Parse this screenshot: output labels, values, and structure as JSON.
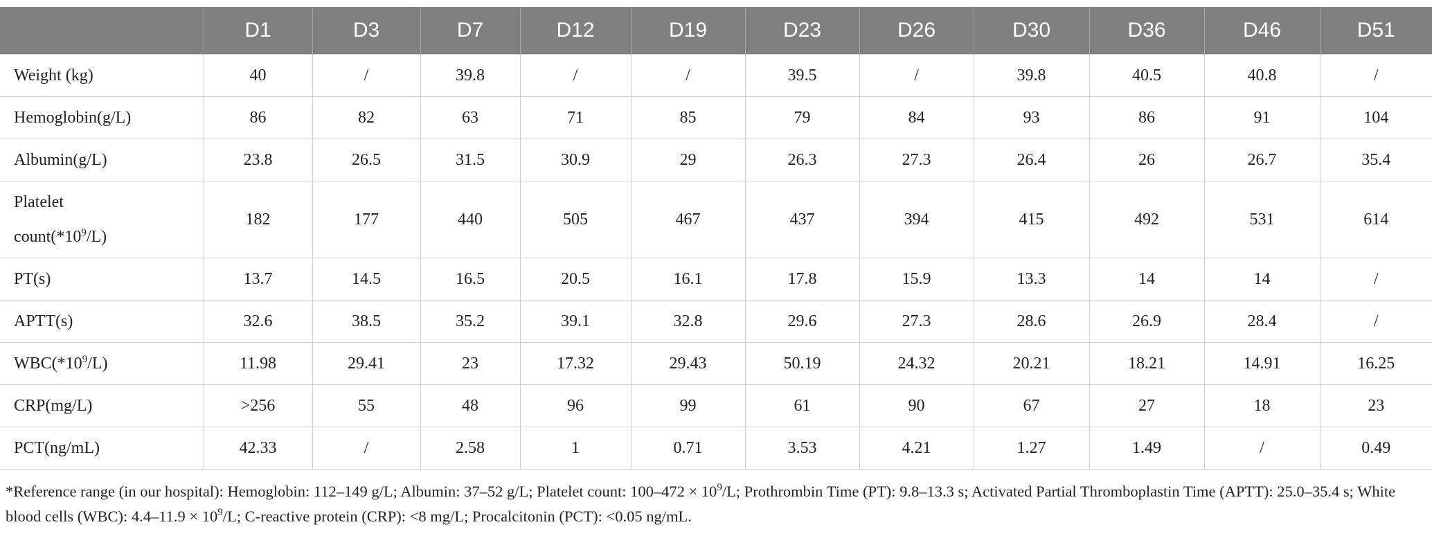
{
  "table": {
    "header": [
      "D1",
      "D3",
      "D7",
      "D12",
      "D19",
      "D23",
      "D26",
      "D30",
      "D36",
      "D46",
      "D51"
    ],
    "rows": [
      {
        "label": [
          {
            "text": "Weight (kg)"
          }
        ],
        "cells": [
          40,
          "/",
          39.8,
          "/",
          "/",
          39.5,
          "/",
          39.8,
          40.5,
          40.8,
          "/"
        ]
      },
      {
        "label": [
          {
            "text": "Hemoglobin(g/L)"
          }
        ],
        "cells": [
          86,
          82,
          63,
          71,
          85,
          79,
          84,
          93,
          86,
          91,
          104
        ]
      },
      {
        "label": [
          {
            "text": "Albumin(g/L)"
          }
        ],
        "cells": [
          23.8,
          26.5,
          31.5,
          30.9,
          29,
          26.3,
          27.3,
          26.4,
          26,
          26.7,
          35.4
        ]
      },
      {
        "label": [
          {
            "text": "Platelet"
          },
          {
            "text": "count(*10"
          },
          {
            "sup": "9"
          },
          {
            "text": "/L)"
          }
        ],
        "cells": [
          182,
          177,
          440,
          505,
          467,
          437,
          394,
          415,
          492,
          531,
          614
        ]
      },
      {
        "label": [
          {
            "text": "PT(s)"
          }
        ],
        "cells": [
          13.7,
          14.5,
          16.5,
          20.5,
          16.1,
          17.8,
          15.9,
          13.3,
          14,
          14,
          "/"
        ]
      },
      {
        "label": [
          {
            "text": "APTT(s)"
          }
        ],
        "cells": [
          32.6,
          38.5,
          35.2,
          39.1,
          32.8,
          29.6,
          27.3,
          28.6,
          26.9,
          28.4,
          "/"
        ]
      },
      {
        "label": [
          {
            "text": "WBC(*10"
          },
          {
            "sup": "9"
          },
          {
            "text": "/L)"
          }
        ],
        "cells": [
          11.98,
          29.41,
          23,
          17.32,
          29.43,
          50.19,
          24.32,
          20.21,
          18.21,
          14.91,
          16.25
        ]
      },
      {
        "label": [
          {
            "text": "CRP(mg/L)"
          }
        ],
        "cells": [
          ">256",
          55,
          48,
          96,
          99,
          61,
          90,
          67,
          27,
          18,
          23
        ]
      },
      {
        "label": [
          {
            "text": "PCT(ng/mL)"
          }
        ],
        "cells": [
          42.33,
          "/",
          2.58,
          1,
          0.71,
          3.53,
          4.21,
          1.27,
          1.49,
          "/",
          0.49
        ]
      }
    ]
  },
  "footnote": [
    {
      "text": "*Reference range (in our hospital): Hemoglobin: 112–149 g/L; Albumin: 37–52 g/L; Platelet count: 100–472 × 10"
    },
    {
      "sup": "9"
    },
    {
      "text": "/L; Prothrombin Time (PT): 9.8–13.3 s; Activated Partial Thromboplastin Time (APTT): 25.0–35.4 s; White blood cells (WBC): 4.4–11.9 × 10"
    },
    {
      "sup": "9"
    },
    {
      "text": "/L; C-reactive protein (CRP): <8 mg/L; Procalcitonin (PCT): <0.05 ng/mL."
    }
  ]
}
